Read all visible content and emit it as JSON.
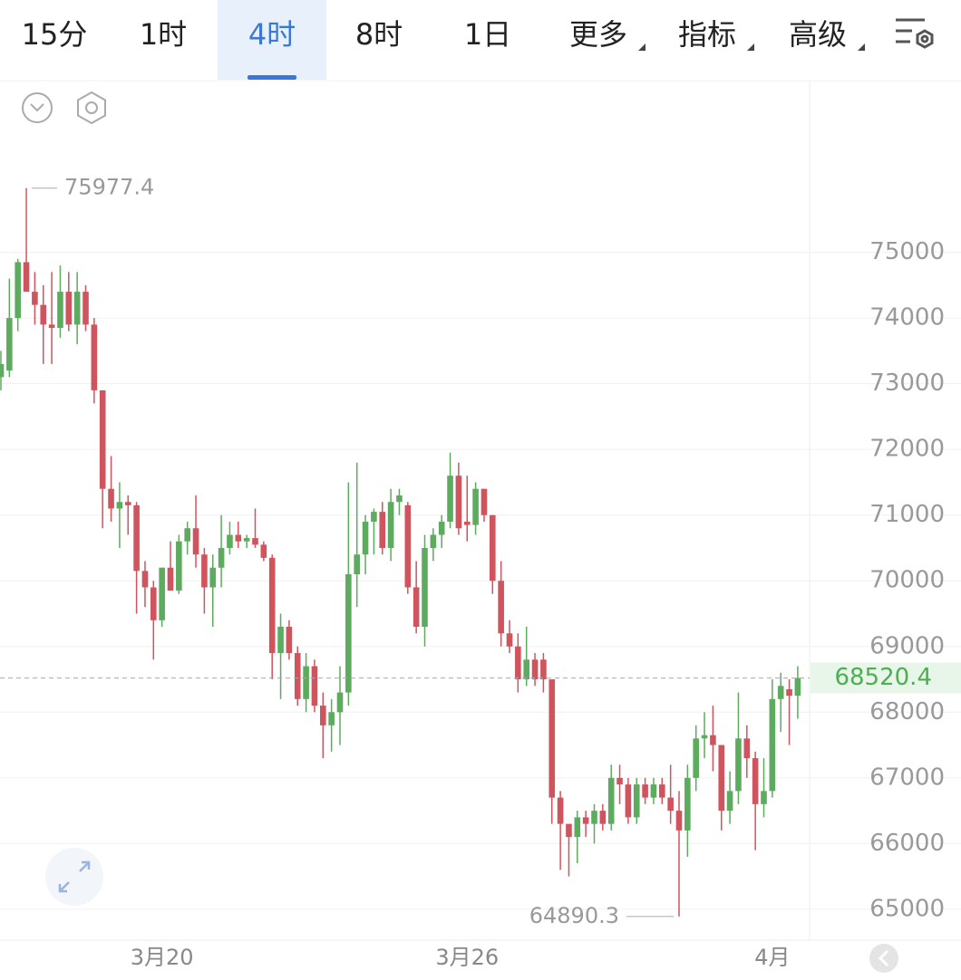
{
  "tabs": [
    {
      "label": "15分"
    },
    {
      "label": "1时"
    },
    {
      "label": "4时",
      "active": true
    },
    {
      "label": "8时"
    },
    {
      "label": "1日"
    },
    {
      "label": "更多",
      "menu": true
    },
    {
      "label": "指标",
      "menu": true
    },
    {
      "label": "高级",
      "menu": true
    }
  ],
  "chart_data": {
    "type": "candlestick",
    "categories": [
      null,
      null,
      null,
      null,
      null,
      null,
      null,
      null,
      null,
      null,
      null,
      null,
      null,
      null,
      null,
      null,
      null,
      null,
      null,
      "3月20",
      null,
      null,
      null,
      null,
      null,
      null,
      null,
      null,
      null,
      null,
      null,
      null,
      null,
      null,
      null,
      null,
      null,
      null,
      null,
      null,
      null,
      null,
      null,
      null,
      null,
      null,
      null,
      null,
      null,
      null,
      null,
      null,
      null,
      null,
      null,
      "3月26",
      null,
      null,
      null,
      null,
      null,
      null,
      null,
      null,
      null,
      null,
      null,
      null,
      null,
      null,
      null,
      null,
      null,
      null,
      null,
      null,
      null,
      null,
      null,
      null,
      null,
      null,
      null,
      null,
      null,
      null,
      null,
      null,
      null,
      null,
      null,
      "4月",
      null,
      null,
      null
    ],
    "open": [
      73100,
      73200,
      74000,
      74850,
      74400,
      74200,
      73900,
      73850,
      74400,
      73900,
      74400,
      73900,
      72900,
      71400,
      71100,
      71200,
      71150,
      70150,
      69900,
      69400,
      70200,
      69850,
      70600,
      70800,
      70400,
      69900,
      70200,
      70500,
      70700,
      70600,
      70650,
      70550,
      70350,
      68900,
      69300,
      68900,
      68200,
      68700,
      68100,
      67800,
      68000,
      68300,
      70100,
      70400,
      70900,
      71050,
      70500,
      71200,
      71150,
      69900,
      69300,
      70500,
      70700,
      70900,
      71600,
      70900,
      70850,
      71400,
      71000,
      70000,
      69200,
      69000,
      68500,
      68800,
      68800,
      68500,
      66700,
      66300,
      66100,
      66400,
      66300,
      66500,
      66300,
      67000,
      66900,
      66400,
      66900,
      66700,
      66900,
      66700,
      66500,
      66200,
      67000,
      67600,
      67650,
      67500,
      66500,
      66800,
      67600,
      67300,
      66600,
      66800,
      68200,
      68350,
      68250
    ],
    "high": [
      73500,
      74600,
      74900,
      75977.4,
      74700,
      74500,
      74700,
      74800,
      74700,
      74700,
      74500,
      74000,
      72900,
      71900,
      71500,
      71300,
      71200,
      70300,
      70000,
      70200,
      70600,
      70700,
      70900,
      71300,
      70500,
      70400,
      71000,
      70900,
      70900,
      70700,
      71100,
      70600,
      70400,
      69500,
      69400,
      69000,
      68900,
      68800,
      68300,
      68200,
      68700,
      71500,
      71800,
      71000,
      71100,
      71200,
      71400,
      71400,
      71200,
      70300,
      70700,
      70800,
      71000,
      71950,
      71800,
      71600,
      71500,
      71400,
      71000,
      70300,
      69400,
      69200,
      69300,
      68900,
      68900,
      68500,
      66800,
      66300,
      66500,
      66500,
      66600,
      66600,
      67200,
      67200,
      67000,
      67000,
      67000,
      67000,
      67000,
      67200,
      66800,
      67200,
      67800,
      68000,
      68100,
      67500,
      67100,
      68300,
      67800,
      67400,
      67300,
      68500,
      68600,
      68500,
      68700
    ],
    "low": [
      72900,
      73100,
      73800,
      74400,
      73900,
      73300,
      73300,
      73700,
      73800,
      73600,
      73800,
      72700,
      70800,
      70900,
      70500,
      70700,
      69500,
      69600,
      68800,
      69300,
      69900,
      69800,
      70400,
      70200,
      69500,
      69300,
      69900,
      70400,
      70500,
      70500,
      70500,
      70300,
      68500,
      68200,
      68800,
      68100,
      68000,
      68000,
      67300,
      67400,
      67500,
      68100,
      69600,
      70100,
      70400,
      70400,
      70300,
      71000,
      69800,
      69200,
      69000,
      70300,
      70500,
      70800,
      70700,
      70600,
      70700,
      70900,
      69800,
      69000,
      68900,
      68300,
      68400,
      68400,
      68300,
      66300,
      65600,
      65500,
      65700,
      66100,
      66000,
      66200,
      66200,
      66600,
      66300,
      66300,
      66600,
      66600,
      66600,
      66300,
      64890.3,
      65800,
      66800,
      67300,
      67100,
      66200,
      66300,
      66600,
      67000,
      65900,
      66400,
      66700,
      67700,
      67500,
      67900
    ],
    "close": [
      73300,
      74000,
      74850,
      74400,
      74200,
      73900,
      73850,
      74400,
      73900,
      74400,
      73900,
      72900,
      71400,
      71100,
      71200,
      71150,
      70150,
      69900,
      69400,
      70200,
      69850,
      70600,
      70800,
      70400,
      69900,
      70200,
      70500,
      70700,
      70600,
      70650,
      70550,
      70350,
      68900,
      69300,
      68900,
      68200,
      68700,
      68100,
      67800,
      68000,
      68300,
      70100,
      70400,
      70900,
      71050,
      70500,
      71200,
      71300,
      69900,
      69300,
      70500,
      70700,
      70900,
      71600,
      70800,
      70850,
      71400,
      71000,
      70000,
      69200,
      69000,
      68500,
      68800,
      68500,
      68500,
      66700,
      66300,
      66100,
      66400,
      66300,
      66500,
      66300,
      67000,
      66900,
      66400,
      66900,
      66700,
      66900,
      66700,
      66500,
      66200,
      67000,
      67600,
      67650,
      67500,
      66500,
      66800,
      67600,
      67300,
      66600,
      66800,
      68200,
      68400,
      68250,
      68520.4
    ],
    "max_index": 3,
    "min_index": 80,
    "ylim": [
      64530,
      77600
    ],
    "yticks": [
      65000,
      66000,
      67000,
      68000,
      69000,
      70000,
      71000,
      72000,
      73000,
      74000,
      75000
    ],
    "up_color": "#5cab5e",
    "down_color": "#d0545e",
    "grid": true
  }
}
